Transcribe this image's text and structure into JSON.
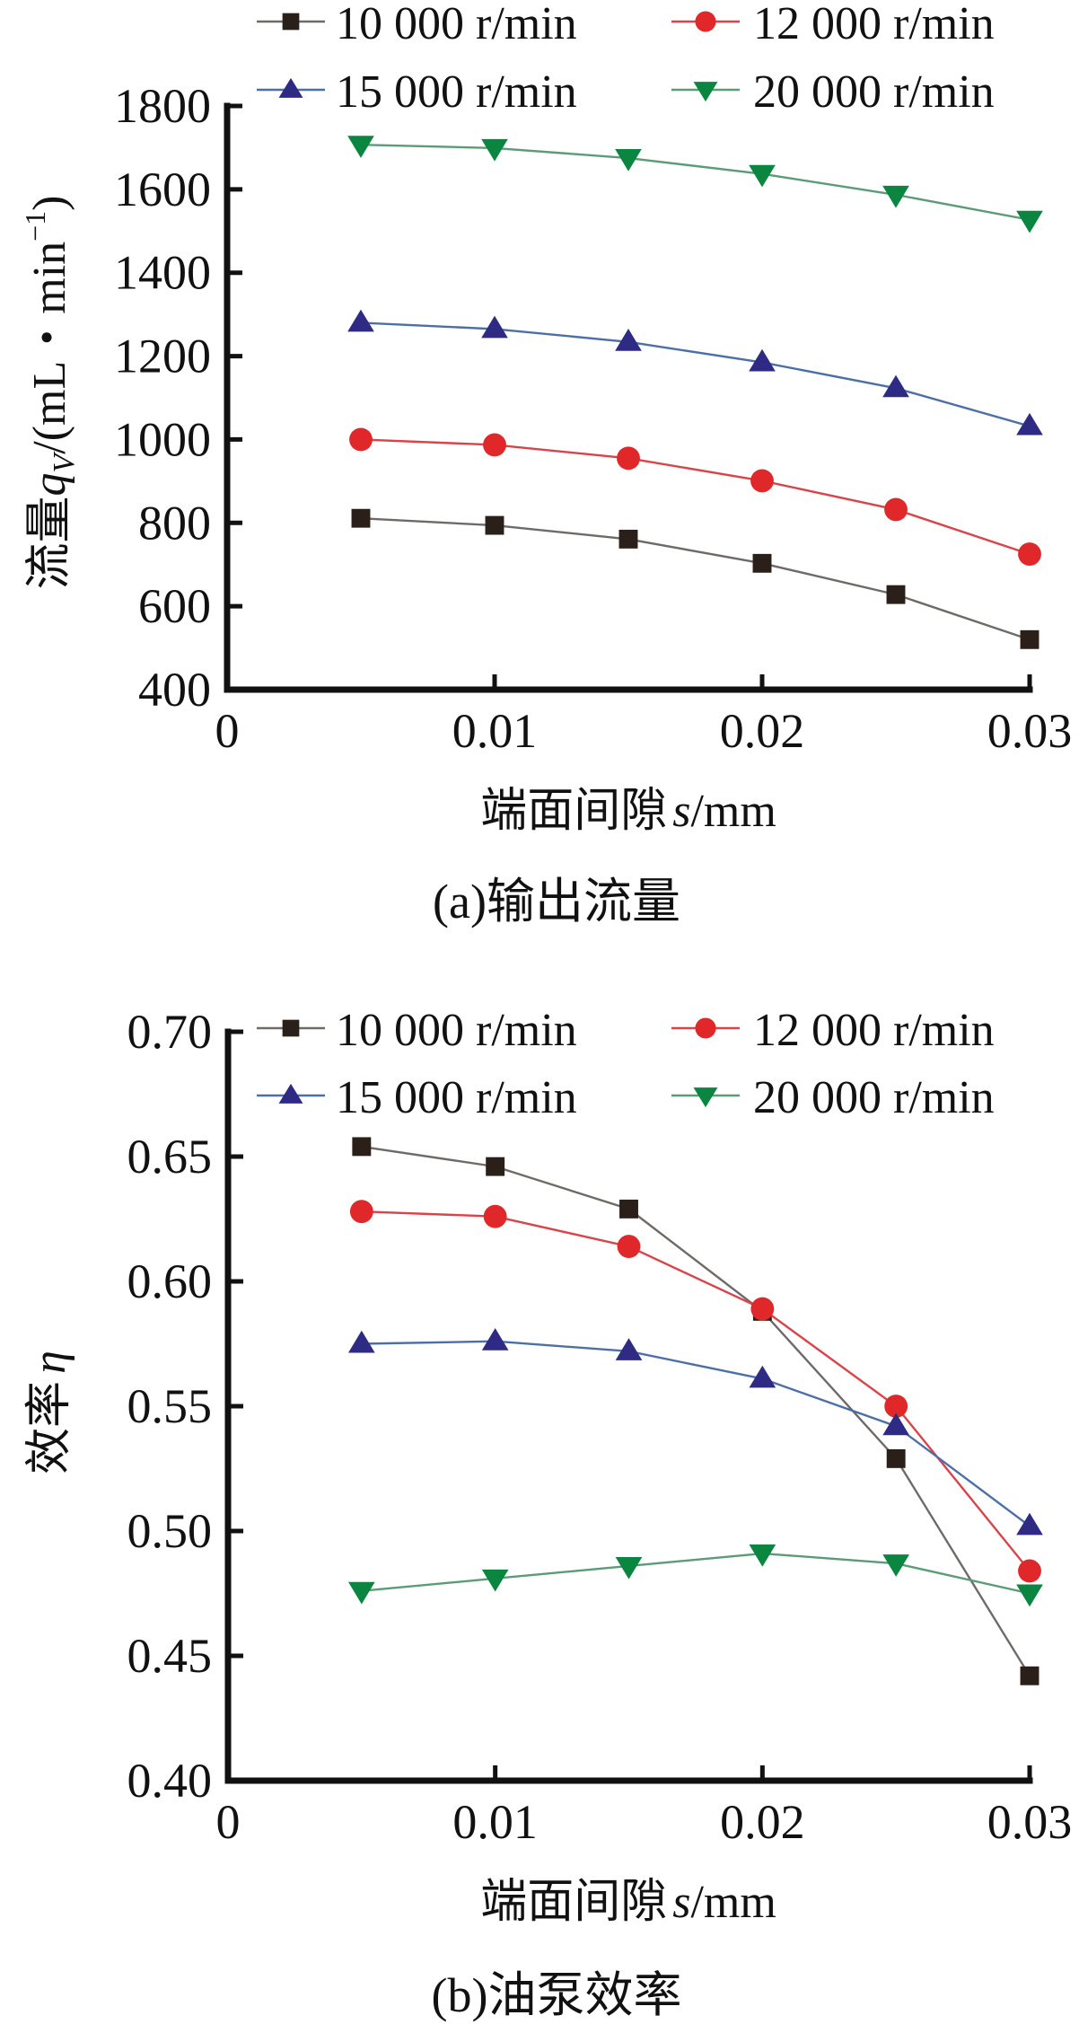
{
  "chart_data": [
    {
      "type": "line",
      "panel": "a",
      "caption": "(a)输出流量",
      "xlabel": "端面间隙 s/mm",
      "xlabel_parts": {
        "cn": "端面间隙",
        "var": "s",
        "unit": "/mm"
      },
      "ylabel": "流量qV/(mL・min⁻¹)",
      "ylabel_parts": {
        "cn": "流量",
        "var": "q",
        "sub": "V",
        "unit_open": "/(mL・min",
        "sup": "−1",
        "unit_close": ")"
      },
      "xlim": [
        0,
        0.03
      ],
      "ylim": [
        400,
        1800
      ],
      "xticks": [
        0,
        0.01,
        0.02,
        0.03
      ],
      "xtick_labels": [
        "0",
        "0.01",
        "0.02",
        "0.03"
      ],
      "yticks": [
        400,
        600,
        800,
        1000,
        1200,
        1400,
        1600,
        1800
      ],
      "ytick_labels": [
        "400",
        "600",
        "800",
        "1000",
        "1200",
        "1400",
        "1600",
        "1800"
      ],
      "grid": false,
      "legend_position": "top",
      "x": [
        0.005,
        0.01,
        0.015,
        0.02,
        0.025,
        0.03
      ],
      "series": [
        {
          "name": "10 000 r/min",
          "marker": "square",
          "color": "#2b1f1a",
          "line_color": "#6e6a68",
          "values": [
            811,
            794,
            761,
            703,
            628,
            520
          ]
        },
        {
          "name": "12 000 r/min",
          "marker": "circle",
          "color": "#e0282a",
          "line_color": "#d9434a",
          "values": [
            1000,
            987,
            955,
            901,
            832,
            725
          ]
        },
        {
          "name": "15 000 r/min",
          "marker": "triangle-up",
          "color": "#2f2b85",
          "line_color": "#4d6fa8",
          "values": [
            1280,
            1265,
            1234,
            1185,
            1123,
            1032
          ]
        },
        {
          "name": "20 000 r/min",
          "marker": "triangle-down",
          "color": "#0a8640",
          "line_color": "#5b9b78",
          "values": [
            1707,
            1699,
            1675,
            1637,
            1587,
            1527
          ]
        }
      ]
    },
    {
      "type": "line",
      "panel": "b",
      "caption": "(b)油泵效率",
      "xlabel": "端面间隙 s/mm",
      "xlabel_parts": {
        "cn": "端面间隙",
        "var": "s",
        "unit": "/mm"
      },
      "ylabel": "效率 η",
      "ylabel_parts": {
        "cn": "效率",
        "var": "η"
      },
      "xlim": [
        0,
        0.03
      ],
      "ylim": [
        0.4,
        0.7
      ],
      "xticks": [
        0,
        0.01,
        0.02,
        0.03
      ],
      "xtick_labels": [
        "0",
        "0.01",
        "0.02",
        "0.03"
      ],
      "yticks": [
        0.4,
        0.45,
        0.5,
        0.55,
        0.6,
        0.65,
        0.7
      ],
      "ytick_labels": [
        "0.40",
        "0.45",
        "0.50",
        "0.55",
        "0.60",
        "0.65",
        "0.70"
      ],
      "grid": false,
      "legend_position": "top",
      "x": [
        0.005,
        0.01,
        0.015,
        0.02,
        0.025,
        0.03
      ],
      "series": [
        {
          "name": "10 000 r/min",
          "marker": "square",
          "color": "#2b1f1a",
          "line_color": "#6e6a68",
          "values": [
            0.654,
            0.646,
            0.629,
            0.588,
            0.529,
            0.442
          ]
        },
        {
          "name": "12 000 r/min",
          "marker": "circle",
          "color": "#e0282a",
          "line_color": "#d9434a",
          "values": [
            0.628,
            0.626,
            0.614,
            0.589,
            0.55,
            0.484
          ]
        },
        {
          "name": "15 000 r/min",
          "marker": "triangle-up",
          "color": "#2f2b85",
          "line_color": "#4d6fa8",
          "values": [
            0.575,
            0.576,
            0.572,
            0.561,
            0.542,
            0.502
          ]
        },
        {
          "name": "20 000 r/min",
          "marker": "triangle-down",
          "color": "#0a8640",
          "line_color": "#5b9b78",
          "values": [
            0.476,
            0.481,
            0.486,
            0.491,
            0.487,
            0.475
          ]
        }
      ]
    }
  ]
}
